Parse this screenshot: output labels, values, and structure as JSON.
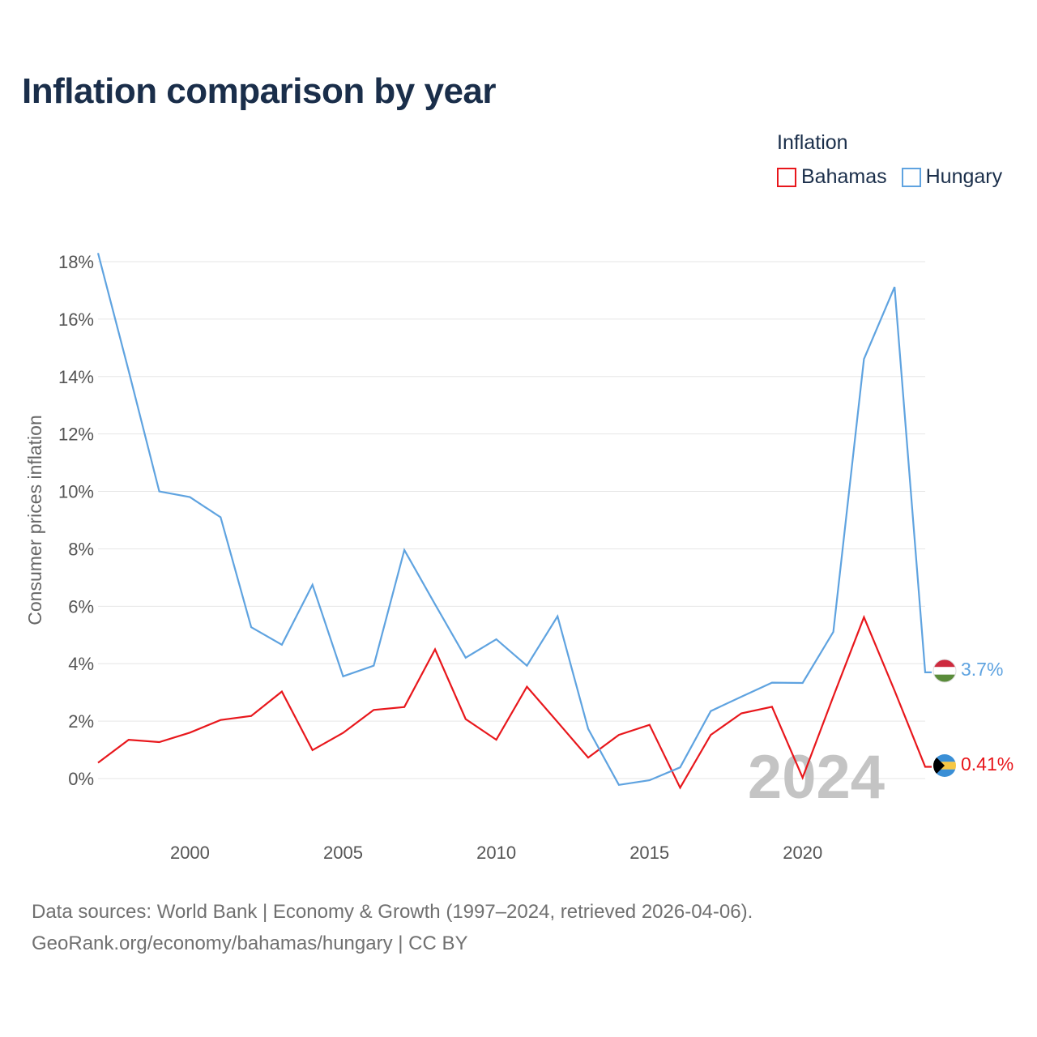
{
  "title": "Inflation comparison by year",
  "legend": {
    "title": "Inflation",
    "items": [
      {
        "label": "Bahamas",
        "color": "#e8171c"
      },
      {
        "label": "Hungary",
        "color": "#5fa3e0"
      }
    ]
  },
  "year_watermark": "2024",
  "source": {
    "line1": "Data sources: World Bank | Economy & Growth (1997–2024, retrieved 2026-04-06).",
    "line2": "GeoRank.org/economy/bahamas/hungary | CC BY"
  },
  "end_labels": {
    "hungary": "3.7%",
    "bahamas": "0.41%"
  },
  "chart_data": {
    "type": "line",
    "title": "Inflation comparison by year",
    "xlabel": "",
    "ylabel": "Consumer prices inflation",
    "x": [
      1997,
      1998,
      1999,
      2000,
      2001,
      2002,
      2003,
      2004,
      2005,
      2006,
      2007,
      2008,
      2009,
      2010,
      2011,
      2012,
      2013,
      2014,
      2015,
      2016,
      2017,
      2018,
      2019,
      2020,
      2021,
      2022,
      2023,
      2024
    ],
    "xlim": [
      1997,
      2024
    ],
    "ylim": [
      -2,
      18.3
    ],
    "xticks": [
      {
        "value": 2000,
        "label": "2000"
      },
      {
        "value": 2005,
        "label": "2005"
      },
      {
        "value": 2010,
        "label": "2010"
      },
      {
        "value": 2015,
        "label": "2015"
      },
      {
        "value": 2020,
        "label": "2020"
      }
    ],
    "yticks": [
      {
        "value": 0,
        "label": "0%"
      },
      {
        "value": 2,
        "label": "2%"
      },
      {
        "value": 4,
        "label": "4%"
      },
      {
        "value": 6,
        "label": "6%"
      },
      {
        "value": 8,
        "label": "8%"
      },
      {
        "value": 10,
        "label": "10%"
      },
      {
        "value": 12,
        "label": "12%"
      },
      {
        "value": 14,
        "label": "14%"
      },
      {
        "value": 16,
        "label": "16%"
      },
      {
        "value": 18,
        "label": "18%"
      }
    ],
    "series": [
      {
        "name": "Bahamas",
        "key": "bahamas",
        "color": "#e8171c",
        "values": [
          0.55,
          1.35,
          1.27,
          1.6,
          2.04,
          2.18,
          3.03,
          0.99,
          1.59,
          2.39,
          2.49,
          4.5,
          2.07,
          1.35,
          3.2,
          1.97,
          0.73,
          1.52,
          1.87,
          -0.32,
          1.52,
          2.27,
          2.5,
          0.03,
          2.86,
          5.62,
          3.06,
          0.41
        ]
      },
      {
        "name": "Hungary",
        "key": "hungary",
        "color": "#5fa3e0",
        "values": [
          18.3,
          14.2,
          10.0,
          9.8,
          9.1,
          5.27,
          4.66,
          6.75,
          3.56,
          3.93,
          7.96,
          6.07,
          4.21,
          4.85,
          3.93,
          5.65,
          1.73,
          -0.22,
          -0.06,
          0.39,
          2.35,
          2.85,
          3.34,
          3.33,
          5.11,
          14.61,
          17.12,
          3.7
        ]
      }
    ]
  }
}
